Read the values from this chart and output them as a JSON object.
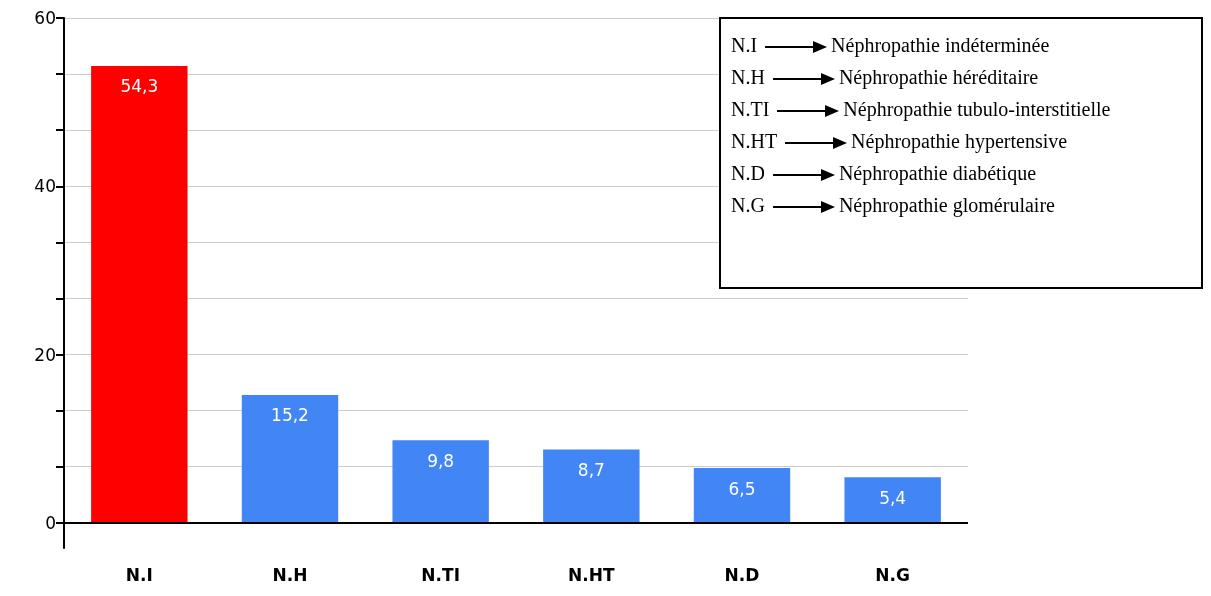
{
  "chart_data": {
    "type": "bar",
    "categories": [
      "N.I",
      "N.H",
      "N.TI",
      "N.HT",
      "N.D",
      "N.G"
    ],
    "values": [
      54.3,
      15.2,
      9.8,
      8.7,
      6.5,
      5.4
    ],
    "value_labels": [
      "54,3",
      "15,2",
      "9,8",
      "8,7",
      "6,5",
      "5,4"
    ],
    "colors": [
      "#ff0000",
      "#4285f4",
      "#4285f4",
      "#4285f4",
      "#4285f4",
      "#4285f4"
    ],
    "ylim": [
      -3,
      60
    ],
    "yticks": [
      0,
      {
        "value": 6.67,
        "label": null
      },
      {
        "value": 13.33,
        "label": null
      },
      20,
      {
        "value": 26.67,
        "label": null
      },
      {
        "value": 33.33,
        "label": null
      },
      40,
      {
        "value": 46.67,
        "label": null
      },
      {
        "value": 53.33,
        "label": null
      },
      60
    ],
    "grid": "y",
    "annotations": [
      "Néphropathie indéterminée",
      "Néphropathie héréditaire",
      "Néphropathie tubulo-interstitielle",
      "Néphropathie hypertensive",
      "Néphropathie diabétique",
      "Néphropathie glomérulaire"
    ]
  }
}
